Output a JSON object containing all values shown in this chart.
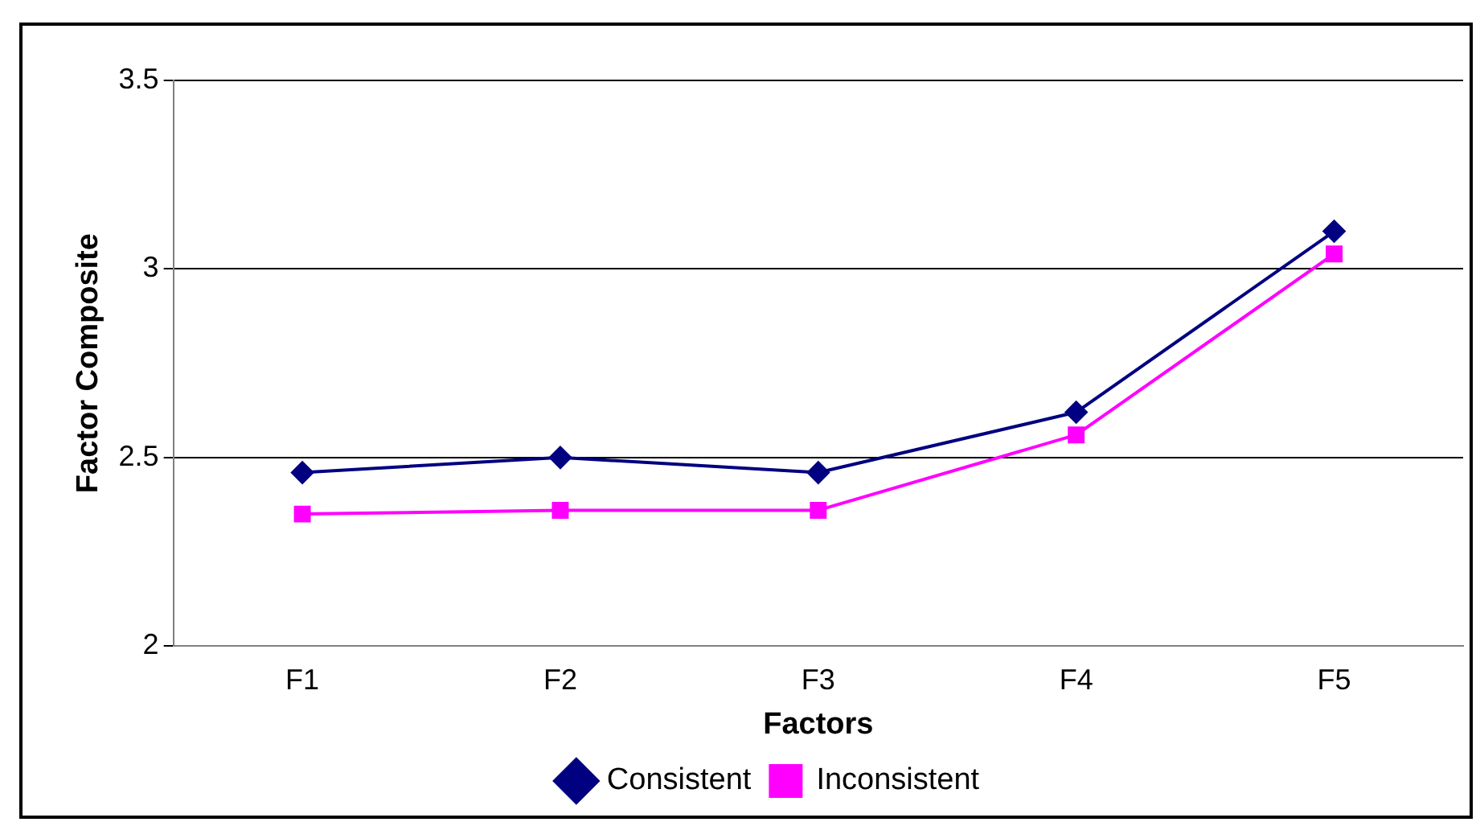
{
  "chart_data": {
    "type": "line",
    "xlabel": "Factors",
    "ylabel": "Factor Composite",
    "categories": [
      "F1",
      "F2",
      "F3",
      "F4",
      "F5"
    ],
    "series": [
      {
        "name": "Consistent",
        "color": "#000080",
        "marker": "diamond",
        "values": [
          2.46,
          2.5,
          2.46,
          2.62,
          3.1
        ]
      },
      {
        "name": "Inconsistent",
        "color": "#ff00ff",
        "marker": "square",
        "values": [
          2.35,
          2.36,
          2.36,
          2.56,
          3.04
        ]
      }
    ],
    "ylim": [
      2,
      3.5
    ],
    "yticks": [
      2,
      2.5,
      3,
      3.5
    ],
    "grid": "y",
    "legend": "bottom"
  }
}
